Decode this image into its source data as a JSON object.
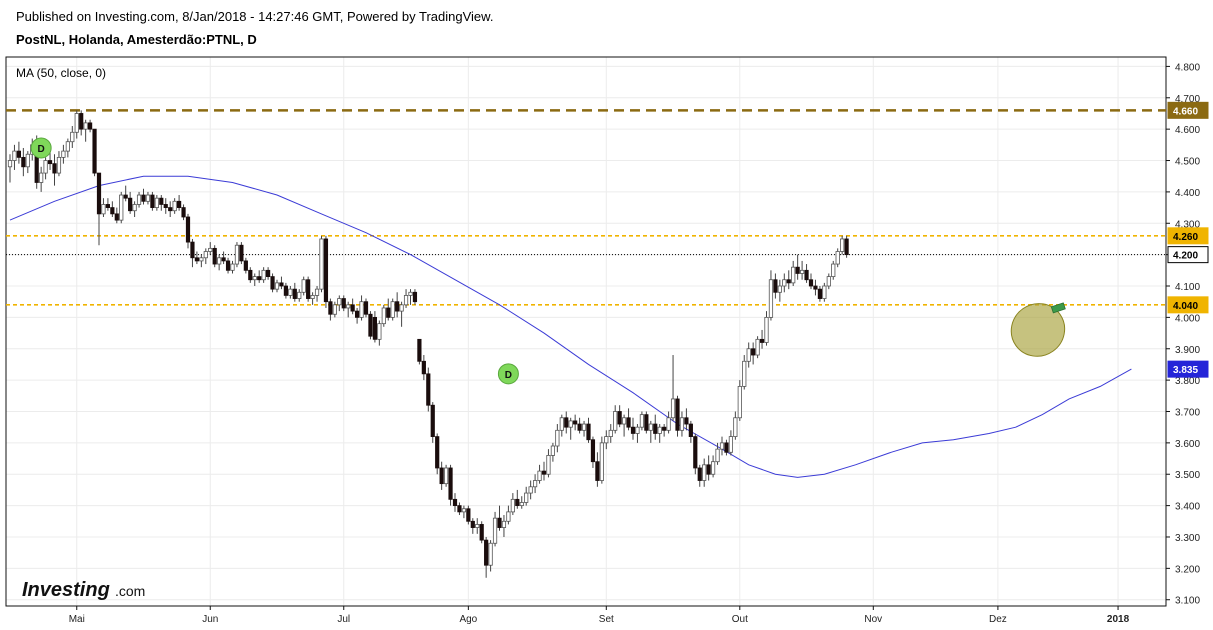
{
  "header": {
    "published": "Published on Investing.com, 8/Jan/2018 - 14:27:46 GMT, Powered by TradingView.",
    "instrument": "PostNL, Holanda, Amesterdão:PTNL, D"
  },
  "indicator_label": "MA (50, close, 0)",
  "logo": {
    "main": "Investing",
    "suffix": ".com"
  },
  "colors": {
    "up_candle": "#ffffff",
    "down_candle": "#1a0d0d",
    "wick": "#444444",
    "ma_line": "#3b3bd6",
    "resistance": "#8b6a12",
    "support": "#f0b400",
    "current": "#000000",
    "marker_green": "#7fd85a",
    "ellipse": "#a8a23a"
  },
  "chart_data": {
    "type": "candlestick",
    "title": "",
    "xlabel": "",
    "ylabel": "",
    "ylim": [
      3.08,
      4.83
    ],
    "yticks": [
      3.1,
      3.2,
      3.3,
      3.4,
      3.5,
      3.6,
      3.7,
      3.8,
      3.9,
      4.0,
      4.1,
      4.2,
      4.3,
      4.4,
      4.5,
      4.6,
      4.7,
      4.8
    ],
    "ytick_labels": [
      "3.100",
      "3.200",
      "3.300",
      "3.400",
      "3.500",
      "3.600",
      "3.700",
      "3.800",
      "3.900",
      "4.000",
      "4.100",
      "4.200",
      "4.300",
      "4.400",
      "4.500",
      "4.600",
      "4.700",
      "4.800"
    ],
    "xticks": [
      {
        "label": "Mai",
        "index": 15,
        "bold": false
      },
      {
        "label": "Jun",
        "index": 45,
        "bold": false
      },
      {
        "label": "Jul",
        "index": 75,
        "bold": false
      },
      {
        "label": "Ago",
        "index": 103,
        "bold": false
      },
      {
        "label": "Set",
        "index": 134,
        "bold": false
      },
      {
        "label": "Out",
        "index": 164,
        "bold": false
      },
      {
        "label": "Nov",
        "index": 194,
        "bold": false
      },
      {
        "label": "Dez",
        "index": 222,
        "bold": false
      },
      {
        "label": "2018",
        "index": 249,
        "bold": true
      }
    ],
    "price_tags": [
      {
        "label": "4.660",
        "value": 4.66,
        "style": "resistance"
      },
      {
        "label": "4.260",
        "value": 4.26,
        "style": "support"
      },
      {
        "label": "4.200",
        "value": 4.2,
        "style": "current"
      },
      {
        "label": "4.040",
        "value": 4.04,
        "style": "support"
      },
      {
        "label": "3.835",
        "value": 3.835,
        "style": "ma"
      }
    ],
    "horizontal_lines": [
      {
        "value": 4.66,
        "style": "resistance"
      },
      {
        "value": 4.26,
        "style": "support"
      },
      {
        "value": 4.2,
        "style": "current"
      },
      {
        "value": 4.04,
        "style": "support"
      }
    ],
    "markers": [
      {
        "label": "D",
        "index": 7,
        "value": 4.54
      },
      {
        "label": "D",
        "index": 112,
        "value": 3.82
      }
    ],
    "annotations": [
      {
        "type": "ellipse",
        "index": 231,
        "value": 3.96
      },
      {
        "type": "flag",
        "index": 234,
        "value": 4.04
      }
    ],
    "candles": [
      [
        4.48,
        4.52,
        4.43,
        4.5
      ],
      [
        4.5,
        4.55,
        4.47,
        4.53
      ],
      [
        4.53,
        4.56,
        4.49,
        4.51
      ],
      [
        4.51,
        4.54,
        4.45,
        4.48
      ],
      [
        4.48,
        4.53,
        4.46,
        4.52
      ],
      [
        4.52,
        4.57,
        4.5,
        4.55
      ],
      [
        4.55,
        4.58,
        4.41,
        4.43
      ],
      [
        4.43,
        4.48,
        4.4,
        4.46
      ],
      [
        4.46,
        4.51,
        4.44,
        4.5
      ],
      [
        4.5,
        4.53,
        4.47,
        4.49
      ],
      [
        4.49,
        4.52,
        4.42,
        4.46
      ],
      [
        4.46,
        4.53,
        4.45,
        4.51
      ],
      [
        4.51,
        4.55,
        4.49,
        4.53
      ],
      [
        4.53,
        4.57,
        4.51,
        4.56
      ],
      [
        4.56,
        4.61,
        4.54,
        4.59
      ],
      [
        4.59,
        4.66,
        4.57,
        4.65
      ],
      [
        4.65,
        4.66,
        4.58,
        4.6
      ],
      [
        4.6,
        4.63,
        4.56,
        4.62
      ],
      [
        4.62,
        4.63,
        4.59,
        4.6
      ],
      [
        4.6,
        4.6,
        4.45,
        4.46
      ],
      [
        4.46,
        4.46,
        4.23,
        4.33
      ],
      [
        4.33,
        4.38,
        4.32,
        4.36
      ],
      [
        4.36,
        4.38,
        4.34,
        4.35
      ],
      [
        4.35,
        4.37,
        4.32,
        4.33
      ],
      [
        4.33,
        4.35,
        4.3,
        4.31
      ],
      [
        4.31,
        4.4,
        4.3,
        4.39
      ],
      [
        4.39,
        4.42,
        4.37,
        4.38
      ],
      [
        4.38,
        4.4,
        4.33,
        4.34
      ],
      [
        4.34,
        4.37,
        4.32,
        4.36
      ],
      [
        4.36,
        4.4,
        4.35,
        4.39
      ],
      [
        4.39,
        4.41,
        4.36,
        4.37
      ],
      [
        4.37,
        4.4,
        4.36,
        4.39
      ],
      [
        4.39,
        4.4,
        4.34,
        4.35
      ],
      [
        4.35,
        4.39,
        4.34,
        4.38
      ],
      [
        4.38,
        4.39,
        4.34,
        4.36
      ],
      [
        4.36,
        4.38,
        4.33,
        4.35
      ],
      [
        4.35,
        4.37,
        4.32,
        4.34
      ],
      [
        4.34,
        4.38,
        4.33,
        4.37
      ],
      [
        4.37,
        4.39,
        4.34,
        4.35
      ],
      [
        4.35,
        4.36,
        4.31,
        4.32
      ],
      [
        4.32,
        4.33,
        4.22,
        4.24
      ],
      [
        4.24,
        4.25,
        4.16,
        4.19
      ],
      [
        4.19,
        4.21,
        4.17,
        4.18
      ],
      [
        4.18,
        4.2,
        4.16,
        4.19
      ],
      [
        4.19,
        4.22,
        4.17,
        4.21
      ],
      [
        4.21,
        4.24,
        4.2,
        4.22
      ],
      [
        4.22,
        4.23,
        4.16,
        4.17
      ],
      [
        4.17,
        4.2,
        4.15,
        4.19
      ],
      [
        4.19,
        4.21,
        4.17,
        4.18
      ],
      [
        4.18,
        4.19,
        4.14,
        4.15
      ],
      [
        4.15,
        4.18,
        4.14,
        4.17
      ],
      [
        4.17,
        4.24,
        4.16,
        4.23
      ],
      [
        4.23,
        4.24,
        4.17,
        4.18
      ],
      [
        4.18,
        4.19,
        4.14,
        4.15
      ],
      [
        4.15,
        4.16,
        4.11,
        4.12
      ],
      [
        4.12,
        4.14,
        4.1,
        4.13
      ],
      [
        4.13,
        4.15,
        4.11,
        4.12
      ],
      [
        4.12,
        4.16,
        4.11,
        4.15
      ],
      [
        4.15,
        4.16,
        4.12,
        4.13
      ],
      [
        4.13,
        4.14,
        4.08,
        4.09
      ],
      [
        4.09,
        4.12,
        4.08,
        4.11
      ],
      [
        4.11,
        4.13,
        4.09,
        4.1
      ],
      [
        4.1,
        4.11,
        4.06,
        4.07
      ],
      [
        4.07,
        4.1,
        4.06,
        4.09
      ],
      [
        4.09,
        4.11,
        4.05,
        4.06
      ],
      [
        4.06,
        4.09,
        4.05,
        4.08
      ],
      [
        4.08,
        4.13,
        4.07,
        4.12
      ],
      [
        4.12,
        4.13,
        4.05,
        4.06
      ],
      [
        4.06,
        4.08,
        4.04,
        4.07
      ],
      [
        4.07,
        4.1,
        4.05,
        4.09
      ],
      [
        4.09,
        4.26,
        4.08,
        4.25
      ],
      [
        4.25,
        4.26,
        4.03,
        4.05
      ],
      [
        4.05,
        4.06,
        3.99,
        4.01
      ],
      [
        4.01,
        4.05,
        4.0,
        4.04
      ],
      [
        4.04,
        4.07,
        4.02,
        4.06
      ],
      [
        4.06,
        4.07,
        4.02,
        4.03
      ],
      [
        4.03,
        4.05,
        4.0,
        4.04
      ],
      [
        4.04,
        4.06,
        4.01,
        4.02
      ],
      [
        4.02,
        4.03,
        3.98,
        4.0
      ],
      [
        4.0,
        4.07,
        3.99,
        4.05
      ],
      [
        4.05,
        4.06,
        4.0,
        4.01
      ],
      [
        4.01,
        4.02,
        3.93,
        3.94
      ],
      [
        4.0,
        4.02,
        3.92,
        3.93
      ],
      [
        3.93,
        3.99,
        3.91,
        3.98
      ],
      [
        3.98,
        4.04,
        3.97,
        4.03
      ],
      [
        4.03,
        4.06,
        3.99,
        4.0
      ],
      [
        4.0,
        4.06,
        3.99,
        4.05
      ],
      [
        4.05,
        4.08,
        4.0,
        4.02
      ],
      [
        4.02,
        4.05,
        3.97,
        4.04
      ],
      [
        4.04,
        4.09,
        4.03,
        4.07
      ],
      [
        4.07,
        4.09,
        4.04,
        4.08
      ],
      [
        4.08,
        4.09,
        4.04,
        4.05
      ],
      [
        3.93,
        3.93,
        3.85,
        3.86
      ],
      [
        3.86,
        3.88,
        3.8,
        3.82
      ],
      [
        3.82,
        3.84,
        3.7,
        3.72
      ],
      [
        3.72,
        3.73,
        3.6,
        3.62
      ],
      [
        3.62,
        3.63,
        3.5,
        3.52
      ],
      [
        3.52,
        3.54,
        3.45,
        3.47
      ],
      [
        3.47,
        3.53,
        3.46,
        3.52
      ],
      [
        3.52,
        3.53,
        3.4,
        3.42
      ],
      [
        3.42,
        3.44,
        3.38,
        3.4
      ],
      [
        3.4,
        3.41,
        3.37,
        3.38
      ],
      [
        3.38,
        3.4,
        3.36,
        3.39
      ],
      [
        3.39,
        3.4,
        3.34,
        3.35
      ],
      [
        3.35,
        3.36,
        3.31,
        3.33
      ],
      [
        3.33,
        3.36,
        3.31,
        3.34
      ],
      [
        3.34,
        3.35,
        3.28,
        3.29
      ],
      [
        3.29,
        3.3,
        3.17,
        3.21
      ],
      [
        3.21,
        3.29,
        3.19,
        3.28
      ],
      [
        3.28,
        3.38,
        3.27,
        3.36
      ],
      [
        3.36,
        3.4,
        3.32,
        3.33
      ],
      [
        3.33,
        3.37,
        3.3,
        3.35
      ],
      [
        3.35,
        3.4,
        3.34,
        3.38
      ],
      [
        3.38,
        3.44,
        3.37,
        3.42
      ],
      [
        3.42,
        3.45,
        3.39,
        3.4
      ],
      [
        3.4,
        3.43,
        3.39,
        3.41
      ],
      [
        3.41,
        3.46,
        3.4,
        3.44
      ],
      [
        3.44,
        3.48,
        3.42,
        3.46
      ],
      [
        3.46,
        3.5,
        3.44,
        3.48
      ],
      [
        3.48,
        3.53,
        3.47,
        3.51
      ],
      [
        3.51,
        3.54,
        3.48,
        3.5
      ],
      [
        3.5,
        3.58,
        3.49,
        3.56
      ],
      [
        3.56,
        3.6,
        3.54,
        3.59
      ],
      [
        3.59,
        3.66,
        3.57,
        3.64
      ],
      [
        3.64,
        3.69,
        3.62,
        3.68
      ],
      [
        3.68,
        3.7,
        3.63,
        3.65
      ],
      [
        3.65,
        3.68,
        3.61,
        3.67
      ],
      [
        3.67,
        3.69,
        3.64,
        3.66
      ],
      [
        3.66,
        3.68,
        3.63,
        3.64
      ],
      [
        3.64,
        3.67,
        3.62,
        3.66
      ],
      [
        3.66,
        3.68,
        3.6,
        3.61
      ],
      [
        3.61,
        3.62,
        3.52,
        3.54
      ],
      [
        3.54,
        3.57,
        3.46,
        3.48
      ],
      [
        3.48,
        3.62,
        3.47,
        3.6
      ],
      [
        3.6,
        3.64,
        3.58,
        3.62
      ],
      [
        3.62,
        3.66,
        3.6,
        3.64
      ],
      [
        3.64,
        3.72,
        3.63,
        3.7
      ],
      [
        3.7,
        3.72,
        3.65,
        3.66
      ],
      [
        3.66,
        3.69,
        3.62,
        3.68
      ],
      [
        3.68,
        3.71,
        3.64,
        3.65
      ],
      [
        3.65,
        3.68,
        3.61,
        3.63
      ],
      [
        3.63,
        3.66,
        3.6,
        3.65
      ],
      [
        3.65,
        3.7,
        3.64,
        3.69
      ],
      [
        3.69,
        3.7,
        3.63,
        3.64
      ],
      [
        3.64,
        3.67,
        3.6,
        3.66
      ],
      [
        3.66,
        3.69,
        3.61,
        3.63
      ],
      [
        3.63,
        3.66,
        3.6,
        3.65
      ],
      [
        3.65,
        3.66,
        3.62,
        3.64
      ],
      [
        3.64,
        3.7,
        3.63,
        3.68
      ],
      [
        3.68,
        3.88,
        3.67,
        3.74
      ],
      [
        3.74,
        3.75,
        3.62,
        3.64
      ],
      [
        3.64,
        3.7,
        3.62,
        3.68
      ],
      [
        3.68,
        3.71,
        3.64,
        3.66
      ],
      [
        3.66,
        3.67,
        3.6,
        3.62
      ],
      [
        3.62,
        3.63,
        3.5,
        3.52
      ],
      [
        3.52,
        3.53,
        3.46,
        3.48
      ],
      [
        3.48,
        3.55,
        3.46,
        3.53
      ],
      [
        3.53,
        3.56,
        3.48,
        3.5
      ],
      [
        3.5,
        3.56,
        3.49,
        3.54
      ],
      [
        3.54,
        3.6,
        3.53,
        3.58
      ],
      [
        3.58,
        3.62,
        3.56,
        3.6
      ],
      [
        3.6,
        3.61,
        3.56,
        3.57
      ],
      [
        3.57,
        3.64,
        3.56,
        3.62
      ],
      [
        3.62,
        3.7,
        3.61,
        3.68
      ],
      [
        3.68,
        3.8,
        3.67,
        3.78
      ],
      [
        3.78,
        3.88,
        3.77,
        3.86
      ],
      [
        3.86,
        3.92,
        3.84,
        3.9
      ],
      [
        3.9,
        3.92,
        3.85,
        3.88
      ],
      [
        3.88,
        3.94,
        3.87,
        3.93
      ],
      [
        3.93,
        3.96,
        3.9,
        3.92
      ],
      [
        3.92,
        4.02,
        3.91,
        4.0
      ],
      [
        4.0,
        4.15,
        3.99,
        4.12
      ],
      [
        4.12,
        4.14,
        4.06,
        4.08
      ],
      [
        4.08,
        4.12,
        4.05,
        4.1
      ],
      [
        4.1,
        4.14,
        4.08,
        4.12
      ],
      [
        4.12,
        4.15,
        4.09,
        4.11
      ],
      [
        4.11,
        4.18,
        4.1,
        4.16
      ],
      [
        4.16,
        4.2,
        4.12,
        4.14
      ],
      [
        4.14,
        4.18,
        4.12,
        4.15
      ],
      [
        4.15,
        4.17,
        4.11,
        4.12
      ],
      [
        4.12,
        4.14,
        4.09,
        4.1
      ],
      [
        4.1,
        4.12,
        4.07,
        4.09
      ],
      [
        4.09,
        4.1,
        4.05,
        4.06
      ],
      [
        4.06,
        4.11,
        4.05,
        4.1
      ],
      [
        4.1,
        4.14,
        4.09,
        4.13
      ],
      [
        4.13,
        4.18,
        4.12,
        4.17
      ],
      [
        4.17,
        4.22,
        4.16,
        4.21
      ],
      [
        4.21,
        4.26,
        4.2,
        4.25
      ],
      [
        4.25,
        4.26,
        4.19,
        4.2
      ]
    ],
    "ma_line": {
      "name": "MA (50, close, 0)",
      "points": [
        [
          0,
          4.31
        ],
        [
          10,
          4.37
        ],
        [
          20,
          4.42
        ],
        [
          30,
          4.45
        ],
        [
          40,
          4.45
        ],
        [
          50,
          4.43
        ],
        [
          60,
          4.39
        ],
        [
          70,
          4.33
        ],
        [
          80,
          4.27
        ],
        [
          90,
          4.2
        ],
        [
          100,
          4.12
        ],
        [
          110,
          4.04
        ],
        [
          120,
          3.95
        ],
        [
          130,
          3.85
        ],
        [
          140,
          3.76
        ],
        [
          150,
          3.66
        ],
        [
          160,
          3.58
        ],
        [
          166,
          3.53
        ],
        [
          172,
          3.5
        ],
        [
          177,
          3.49
        ],
        [
          183,
          3.5
        ],
        [
          190,
          3.53
        ],
        [
          198,
          3.57
        ],
        [
          205,
          3.6
        ],
        [
          212,
          3.61
        ],
        [
          220,
          3.63
        ],
        [
          226,
          3.65
        ],
        [
          232,
          3.69
        ],
        [
          238,
          3.74
        ],
        [
          245,
          3.78
        ],
        [
          252,
          3.835
        ]
      ]
    }
  }
}
